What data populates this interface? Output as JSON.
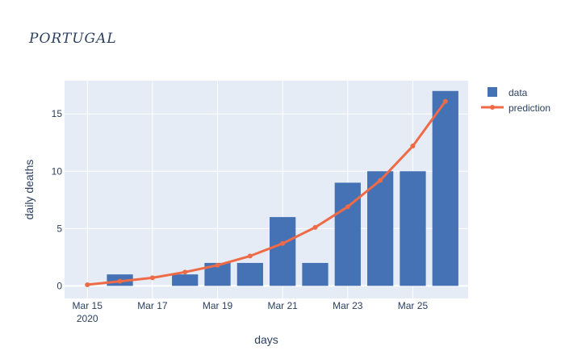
{
  "chart_data": {
    "type": "bar",
    "title": "PORTUGAL",
    "xlabel": "days",
    "ylabel": "daily deaths",
    "x_range": [
      -0.7,
      11.7
    ],
    "ylim": [
      -1.1,
      17.9
    ],
    "x_ticks": [
      {
        "i": 0,
        "label": "Mar 15",
        "sublabel": "2020"
      },
      {
        "i": 2,
        "label": "Mar 17",
        "sublabel": ""
      },
      {
        "i": 4,
        "label": "Mar 19",
        "sublabel": ""
      },
      {
        "i": 6,
        "label": "Mar 21",
        "sublabel": ""
      },
      {
        "i": 8,
        "label": "Mar 23",
        "sublabel": ""
      },
      {
        "i": 10,
        "label": "Mar 25",
        "sublabel": ""
      }
    ],
    "y_ticks": [
      0,
      5,
      10,
      15
    ],
    "y_tick_labels": [
      "0",
      "5",
      "10",
      "15"
    ],
    "grid": true,
    "legend_position": "top-right",
    "categories": [
      "2020-03-15",
      "2020-03-16",
      "2020-03-17",
      "2020-03-18",
      "2020-03-19",
      "2020-03-20",
      "2020-03-21",
      "2020-03-22",
      "2020-03-23",
      "2020-03-24",
      "2020-03-25",
      "2020-03-26"
    ],
    "series": [
      {
        "name": "data",
        "kind": "bar",
        "color": "#4472b4",
        "values": [
          0,
          1,
          0,
          1,
          2,
          2,
          6,
          2,
          9,
          10,
          10,
          17
        ]
      },
      {
        "name": "prediction",
        "kind": "line",
        "color": "#ef6a47",
        "values": [
          0.1,
          0.4,
          0.7,
          1.2,
          1.8,
          2.6,
          3.7,
          5.1,
          6.9,
          9.2,
          12.2,
          16.1
        ]
      }
    ]
  }
}
